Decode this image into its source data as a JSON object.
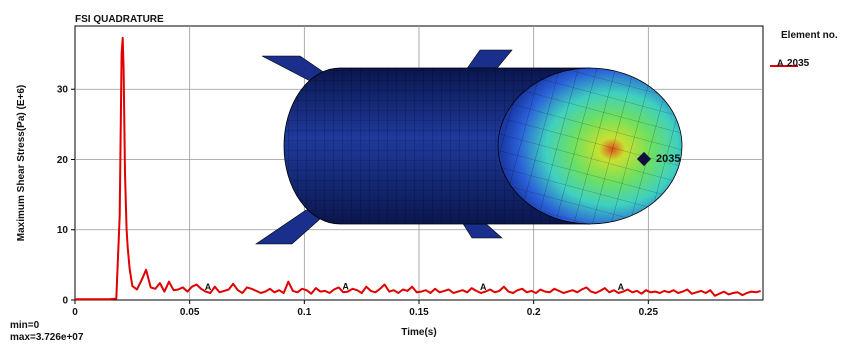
{
  "chart_data": {
    "type": "line",
    "title": "FSI QUADRATURE",
    "xlabel": "Time(s)",
    "ylabel": "Maximum Shear Stress(Pa) (E+6)",
    "xlim": [
      0,
      0.3
    ],
    "ylim": [
      0,
      39
    ],
    "x_ticks": [
      0,
      0.05,
      0.1,
      0.15,
      0.2,
      0.25
    ],
    "x_tick_labels": [
      "0",
      "0.05",
      "0.1",
      "0.15",
      "0.2",
      "0.25"
    ],
    "y_ticks": [
      0,
      10,
      20,
      30
    ],
    "y_tick_labels": [
      "0",
      "10",
      "20",
      "30"
    ],
    "grid": true,
    "legend_title": "Element no.",
    "legend_position": "right",
    "series": [
      {
        "name": "2035",
        "marker_label": "A",
        "color": "#e00000",
        "marker_x": [
          0.058,
          0.118,
          0.178,
          0.238
        ],
        "x": [
          0,
          0.005,
          0.01,
          0.015,
          0.018,
          0.0195,
          0.0203,
          0.0208,
          0.0212,
          0.0218,
          0.0225,
          0.023,
          0.0238,
          0.025,
          0.027,
          0.029,
          0.031,
          0.033,
          0.035,
          0.037,
          0.039,
          0.041,
          0.043,
          0.045,
          0.047,
          0.049,
          0.051,
          0.053,
          0.055,
          0.057,
          0.059,
          0.061,
          0.063,
          0.065,
          0.067,
          0.069,
          0.071,
          0.073,
          0.075,
          0.077,
          0.079,
          0.081,
          0.083,
          0.085,
          0.087,
          0.089,
          0.091,
          0.093,
          0.095,
          0.097,
          0.099,
          0.101,
          0.103,
          0.105,
          0.107,
          0.109,
          0.111,
          0.113,
          0.115,
          0.117,
          0.119,
          0.121,
          0.123,
          0.125,
          0.127,
          0.129,
          0.131,
          0.133,
          0.135,
          0.137,
          0.139,
          0.141,
          0.143,
          0.145,
          0.147,
          0.149,
          0.151,
          0.153,
          0.155,
          0.157,
          0.159,
          0.161,
          0.163,
          0.165,
          0.167,
          0.169,
          0.171,
          0.173,
          0.175,
          0.177,
          0.179,
          0.181,
          0.183,
          0.185,
          0.187,
          0.189,
          0.191,
          0.193,
          0.195,
          0.197,
          0.199,
          0.201,
          0.203,
          0.205,
          0.207,
          0.209,
          0.211,
          0.213,
          0.215,
          0.217,
          0.219,
          0.221,
          0.223,
          0.225,
          0.227,
          0.229,
          0.231,
          0.233,
          0.235,
          0.237,
          0.239,
          0.241,
          0.243,
          0.245,
          0.247,
          0.249,
          0.251,
          0.253,
          0.255,
          0.257,
          0.259,
          0.261,
          0.263,
          0.265,
          0.267,
          0.269,
          0.271,
          0.273,
          0.275,
          0.277,
          0.279,
          0.281,
          0.283,
          0.285,
          0.287,
          0.289,
          0.291,
          0.293,
          0.295,
          0.297,
          0.299
        ],
        "values": [
          0.1,
          0.1,
          0.1,
          0.1,
          0.2,
          12,
          35,
          37.3,
          33,
          18,
          10,
          7.5,
          4.5,
          2.0,
          1.5,
          2.8,
          4.3,
          1.8,
          1.6,
          2.4,
          1.2,
          2.6,
          1.4,
          1.5,
          1.8,
          1.2,
          1.9,
          2.2,
          1.6,
          1.2,
          1.0,
          1.9,
          1.1,
          1.3,
          1.5,
          2.3,
          1.4,
          1.0,
          1.8,
          1.6,
          1.3,
          1.0,
          1.2,
          1.6,
          1.1,
          1.4,
          1.0,
          2.6,
          1.3,
          1.1,
          1.6,
          1.4,
          0.9,
          1.7,
          1.2,
          1.3,
          1.0,
          1.5,
          1.8,
          1.1,
          1.2,
          1.6,
          1.4,
          1.0,
          1.9,
          1.3,
          1.1,
          1.6,
          2.2,
          1.2,
          1.4,
          1.0,
          1.5,
          1.3,
          1.9,
          1.1,
          1.2,
          1.4,
          1.0,
          1.6,
          1.1,
          1.3,
          1.5,
          1.0,
          1.2,
          1.4,
          1.1,
          1.7,
          1.3,
          1.0,
          1.2,
          1.5,
          1.1,
          1.3,
          1.9,
          1.2,
          1.0,
          1.4,
          1.6,
          1.1,
          1.3,
          1.0,
          1.5,
          1.2,
          1.1,
          1.6,
          1.3,
          1.0,
          1.2,
          1.4,
          1.1,
          1.5,
          1.8,
          1.2,
          1.0,
          1.3,
          1.7,
          1.1,
          1.4,
          1.0,
          1.2,
          1.5,
          1.1,
          1.3,
          0.9,
          1.4,
          1.1,
          1.2,
          1.0,
          1.3,
          1.1,
          1.4,
          1.0,
          1.2,
          1.5,
          0.9,
          1.1,
          1.3,
          1.0,
          1.4,
          0.6,
          0.9,
          1.2,
          0.8,
          1.0,
          1.1,
          0.7,
          1.0,
          1.2,
          1.1,
          1.3
        ]
      }
    ]
  },
  "inset_model": {
    "label": "2035",
    "body_color": "#1a2e8c",
    "cap_colors": [
      "#2a5fd8",
      "#3fd0c0",
      "#6fe060",
      "#c8e030",
      "#e05020"
    ]
  },
  "footer": {
    "min_text": "min=0",
    "max_text": "max=3.726e+07"
  }
}
